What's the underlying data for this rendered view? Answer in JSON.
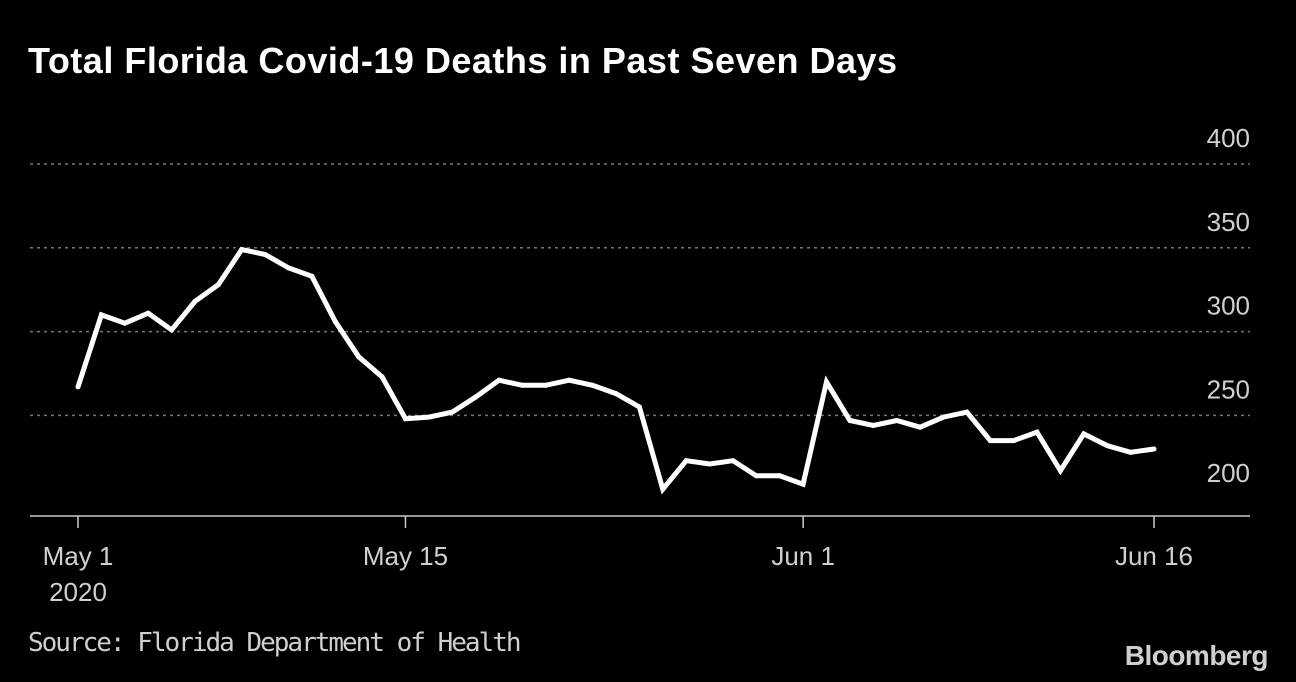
{
  "chart_data": {
    "type": "line",
    "title": "Total Florida Covid-19 Deaths in Past Seven Days",
    "xlabel": "",
    "ylabel": "",
    "x": [
      "2020-05-01",
      "2020-05-02",
      "2020-05-03",
      "2020-05-04",
      "2020-05-05",
      "2020-05-06",
      "2020-05-07",
      "2020-05-08",
      "2020-05-09",
      "2020-05-10",
      "2020-05-11",
      "2020-05-12",
      "2020-05-13",
      "2020-05-14",
      "2020-05-15",
      "2020-05-16",
      "2020-05-17",
      "2020-05-18",
      "2020-05-19",
      "2020-05-20",
      "2020-05-21",
      "2020-05-22",
      "2020-05-23",
      "2020-05-24",
      "2020-05-25",
      "2020-05-26",
      "2020-05-27",
      "2020-05-28",
      "2020-05-29",
      "2020-05-30",
      "2020-05-31",
      "2020-06-01",
      "2020-06-02",
      "2020-06-03",
      "2020-06-04",
      "2020-06-05",
      "2020-06-06",
      "2020-06-07",
      "2020-06-08",
      "2020-06-09",
      "2020-06-10",
      "2020-06-11",
      "2020-06-12",
      "2020-06-13",
      "2020-06-14",
      "2020-06-15",
      "2020-06-16"
    ],
    "series": [
      {
        "name": "",
        "values": [
          267,
          310,
          305,
          311,
          301,
          318,
          328,
          349,
          346,
          338,
          333,
          306,
          285,
          273,
          248,
          249,
          252,
          261,
          271,
          268,
          268,
          271,
          268,
          263,
          255,
          206,
          223,
          221,
          223,
          214,
          214,
          209,
          270,
          247,
          244,
          247,
          243,
          249,
          252,
          235,
          235,
          240,
          217,
          239,
          232,
          228,
          230
        ]
      }
    ],
    "ylim": [
      190,
      400
    ],
    "yticks": [
      200,
      250,
      300,
      350,
      400
    ],
    "xticks": [
      {
        "date": "2020-05-01",
        "label": "May 1",
        "sublabel": "2020"
      },
      {
        "date": "2020-05-15",
        "label": "May 15"
      },
      {
        "date": "2020-06-01",
        "label": "Jun 1"
      },
      {
        "date": "2020-06-16",
        "label": "Jun 16"
      }
    ],
    "grid": true,
    "line_color": "#ffffff",
    "grid_color": "#777777",
    "source": "Source: Florida Department of Health",
    "brand": "Bloomberg"
  }
}
